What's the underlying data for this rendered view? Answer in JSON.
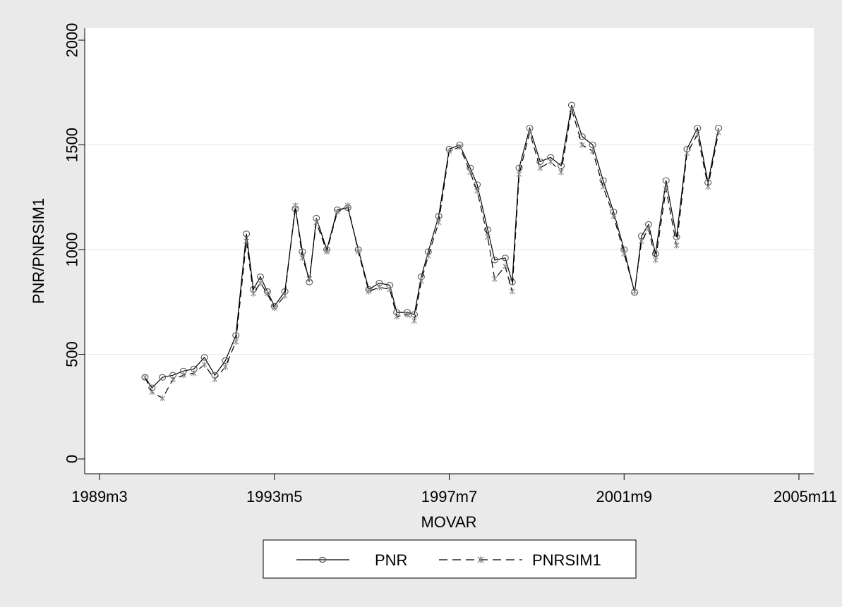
{
  "chart_data": {
    "type": "line",
    "title": "",
    "xlabel": "MOVAR",
    "ylabel": "PNR/PNRSIM1",
    "ylim": [
      0,
      2000
    ],
    "xlim": [
      "1989m3",
      "2005m11"
    ],
    "yticks": [
      0,
      500,
      1000,
      1500,
      2000
    ],
    "xticks": [
      "1989m3",
      "1993m5",
      "1997m7",
      "2001m9",
      "2005m11"
    ],
    "grid": true,
    "legend": {
      "position": "bottom-center",
      "entries": [
        "PNR",
        "PNRSIM1"
      ]
    },
    "series": [
      {
        "name": "PNR",
        "style": "solid line, circle markers",
        "color": "#000000",
        "marker_color": "#555555",
        "x": [
          "1990m4",
          "1990m6",
          "1990m9",
          "1990m12",
          "1991m3",
          "1991m6",
          "1991m9",
          "1991m12",
          "1992m3",
          "1992m6",
          "1992m9",
          "1992m11",
          "1993m1",
          "1993m3",
          "1993m5",
          "1993m8",
          "1993m11",
          "1994m1",
          "1994m3",
          "1994m5",
          "1994m8",
          "1994m11",
          "1995m2",
          "1995m5",
          "1995m8",
          "1995m11",
          "1996m2",
          "1996m4",
          "1996m7",
          "1996m9",
          "1996m11",
          "1997m1",
          "1997m4",
          "1997m7",
          "1997m10",
          "1998m1",
          "1998m3",
          "1998m6",
          "1998m8",
          "1998m11",
          "1999m1",
          "1999m3",
          "1999m6",
          "1999m9",
          "1999m12",
          "2000m3",
          "2000m6",
          "2000m9",
          "2000m12",
          "2001m3",
          "2001m6",
          "2001m9",
          "2001m12",
          "2002m2",
          "2002m4",
          "2002m6",
          "2002m9",
          "2002m12",
          "2003m3",
          "2003m6",
          "2003m9",
          "2003m12"
        ],
        "y": [
          390,
          340,
          390,
          400,
          420,
          430,
          485,
          400,
          470,
          590,
          1075,
          810,
          870,
          800,
          730,
          800,
          1195,
          990,
          845,
          1150,
          1000,
          1190,
          1200,
          1000,
          810,
          840,
          830,
          700,
          700,
          690,
          870,
          990,
          1160,
          1480,
          1500,
          1390,
          1310,
          1095,
          950,
          960,
          845,
          1390,
          1580,
          1420,
          1440,
          1400,
          1690,
          1540,
          1500,
          1330,
          1180,
          1000,
          795,
          1065,
          1120,
          980,
          1330,
          1060,
          1480,
          1580,
          1320,
          1580
        ]
      },
      {
        "name": "PNRSIM1",
        "style": "dashed line, x markers",
        "color": "#000000",
        "marker_color": "#888888",
        "x": [
          "1990m4",
          "1990m6",
          "1990m9",
          "1990m12",
          "1991m3",
          "1991m6",
          "1991m9",
          "1991m12",
          "1992m3",
          "1992m6",
          "1992m9",
          "1992m11",
          "1993m1",
          "1993m3",
          "1993m5",
          "1993m8",
          "1993m11",
          "1994m1",
          "1994m3",
          "1994m5",
          "1994m8",
          "1994m11",
          "1995m2",
          "1995m5",
          "1995m8",
          "1995m11",
          "1996m2",
          "1996m4",
          "1996m7",
          "1996m9",
          "1996m11",
          "1997m1",
          "1997m4",
          "1997m7",
          "1997m10",
          "1998m1",
          "1998m3",
          "1998m6",
          "1998m8",
          "1998m11",
          "1999m1",
          "1999m3",
          "1999m6",
          "1999m9",
          "1999m12",
          "2000m3",
          "2000m6",
          "2000m9",
          "2000m12",
          "2001m3",
          "2001m6",
          "2001m9",
          "2001m12",
          "2002m2",
          "2002m4",
          "2002m6",
          "2002m9",
          "2002m12",
          "2003m3",
          "2003m6",
          "2003m9",
          "2003m12"
        ],
        "y": [
          390,
          320,
          290,
          380,
          400,
          410,
          450,
          380,
          440,
          560,
          1040,
          790,
          840,
          790,
          720,
          780,
          1210,
          960,
          860,
          1130,
          990,
          1180,
          1210,
          990,
          800,
          820,
          810,
          680,
          690,
          660,
          850,
          970,
          1130,
          1470,
          1490,
          1370,
          1280,
          1060,
          860,
          920,
          800,
          1360,
          1560,
          1390,
          1420,
          1370,
          1670,
          1500,
          1470,
          1300,
          1160,
          980,
          800,
          1040,
          1100,
          950,
          1290,
          1020,
          1460,
          1550,
          1300,
          1560
        ]
      }
    ]
  }
}
